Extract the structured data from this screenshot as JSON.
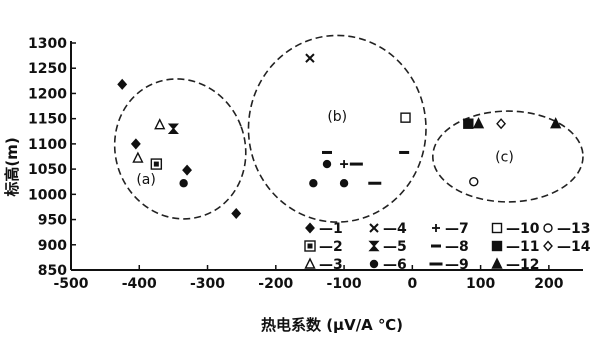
{
  "chart_data": {
    "type": "scatter",
    "xlabel": "热电系数 (μV/A ℃)",
    "ylabel": "标高(m)",
    "xlim": [
      -500,
      250
    ],
    "ylim": [
      850,
      1300
    ],
    "xticks": [
      -500,
      -400,
      -300,
      -200,
      -100,
      0,
      100,
      200
    ],
    "yticks": [
      850,
      900,
      950,
      1000,
      1050,
      1100,
      1150,
      1200,
      1250,
      1300
    ],
    "legend_placement": "bottom-right",
    "clusters": [
      {
        "label": "(a)",
        "center": [
          -340,
          1090
        ],
        "radii": [
          95,
          140
        ],
        "rotate": -20,
        "label_at": [
          -390,
          1020
        ]
      },
      {
        "label": "(b)",
        "center": [
          -110,
          1130
        ],
        "radii": [
          130,
          185
        ],
        "rotate": 0,
        "label_at": [
          -110,
          1145
        ]
      },
      {
        "label": "(c)",
        "center": [
          140,
          1075
        ],
        "radii": [
          110,
          90
        ],
        "rotate": 0,
        "label_at": [
          135,
          1065
        ]
      }
    ],
    "series": [
      {
        "name": "1",
        "marker": "diamond-filled",
        "points": [
          [
            -425,
            1218
          ],
          [
            -405,
            1100
          ],
          [
            -330,
            1048
          ],
          [
            -258,
            962
          ]
        ]
      },
      {
        "name": "2",
        "marker": "square-dotted",
        "points": [
          [
            -375,
            1060
          ]
        ]
      },
      {
        "name": "3",
        "marker": "triangle-open",
        "points": [
          [
            -370,
            1138
          ],
          [
            -402,
            1072
          ]
        ]
      },
      {
        "name": "4",
        "marker": "x",
        "points": [
          [
            -150,
            1270
          ]
        ]
      },
      {
        "name": "5",
        "marker": "hourglass",
        "points": [
          [
            -350,
            1130
          ]
        ]
      },
      {
        "name": "6",
        "marker": "circle-filled",
        "points": [
          [
            -335,
            1022
          ],
          [
            -145,
            1022
          ],
          [
            -100,
            1022
          ],
          [
            -125,
            1060
          ]
        ]
      },
      {
        "name": "7",
        "marker": "plus",
        "points": [
          [
            -100,
            1060
          ]
        ]
      },
      {
        "name": "8",
        "marker": "dash-short",
        "points": [
          [
            -125,
            1083
          ],
          [
            -12,
            1083
          ]
        ]
      },
      {
        "name": "9",
        "marker": "dash-long",
        "points": [
          [
            -82,
            1060
          ],
          [
            -55,
            1022
          ]
        ]
      },
      {
        "name": "10",
        "marker": "square-open",
        "points": [
          [
            -10,
            1152
          ]
        ]
      },
      {
        "name": "11",
        "marker": "square-filled",
        "points": [
          [
            82,
            1140
          ]
        ]
      },
      {
        "name": "12",
        "marker": "triangle-filled",
        "points": [
          [
            97,
            1140
          ],
          [
            210,
            1140
          ]
        ]
      },
      {
        "name": "13",
        "marker": "circle-open",
        "points": [
          [
            90,
            1025
          ]
        ]
      },
      {
        "name": "14",
        "marker": "diamond-open",
        "points": [
          [
            130,
            1140
          ]
        ]
      }
    ]
  }
}
